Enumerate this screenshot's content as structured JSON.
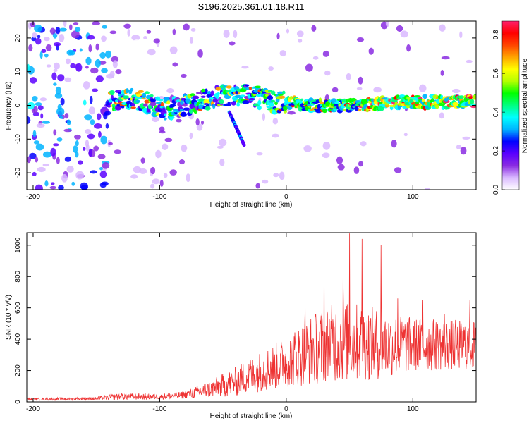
{
  "title": "S196.2025.361.01.18.R11",
  "chart_data": [
    {
      "type": "heatmap",
      "name": "spectrogram",
      "xlabel": "Height of straight line (km)",
      "ylabel": "Frequency (Hz)",
      "xlim": [
        -205,
        150
      ],
      "ylim": [
        -25,
        25
      ],
      "xticks": [
        -200,
        -100,
        0,
        100
      ],
      "yticks": [
        -20,
        -10,
        0,
        10,
        20
      ],
      "colorbar": {
        "label": "Normalized spectral amplitude",
        "range": [
          0,
          0.87
        ],
        "ticks": [
          0.0,
          0.2,
          0.4,
          0.6,
          0.8
        ],
        "colors": [
          "#ffffff",
          "#d9b8ff",
          "#8a2be2",
          "#5a00ff",
          "#0000ff",
          "#00b4ff",
          "#00ffff",
          "#00ff80",
          "#00ff00",
          "#b4ff00",
          "#ffff00",
          "#ffa500",
          "#ff4500",
          "#ff0000",
          "#ff1f6b"
        ]
      },
      "signal_ridge": [
        {
          "x": -140,
          "f": 1
        },
        {
          "x": -130,
          "f": 2
        },
        {
          "x": -120,
          "f": 2
        },
        {
          "x": -110,
          "f": 1
        },
        {
          "x": -100,
          "f": -1
        },
        {
          "x": -90,
          "f": -1
        },
        {
          "x": -80,
          "f": 0
        },
        {
          "x": -70,
          "f": 1
        },
        {
          "x": -60,
          "f": 2
        },
        {
          "x": -50,
          "f": 3
        },
        {
          "x": -40,
          "f": 3
        },
        {
          "x": -30,
          "f": 4
        },
        {
          "x": -20,
          "f": 2
        },
        {
          "x": -10,
          "f": 1
        },
        {
          "x": 0,
          "f": 1
        },
        {
          "x": 20,
          "f": 0
        },
        {
          "x": 40,
          "f": 0
        },
        {
          "x": 60,
          "f": 0
        },
        {
          "x": 80,
          "f": 1
        },
        {
          "x": 100,
          "f": 1
        },
        {
          "x": 120,
          "f": 1
        },
        {
          "x": 150,
          "f": 1
        }
      ]
    },
    {
      "type": "line",
      "name": "snr",
      "xlabel": "Height of straight line (km)",
      "ylabel": "SNR (10 * v/v)",
      "xlim": [
        -205,
        150
      ],
      "ylim": [
        0,
        1080
      ],
      "xticks": [
        -200,
        -100,
        0,
        100
      ],
      "yticks": [
        0,
        200,
        400,
        600,
        800,
        1000
      ],
      "color": "#ee3333",
      "envelope": [
        {
          "x": -205,
          "base": 15,
          "amp": 15
        },
        {
          "x": -150,
          "base": 20,
          "amp": 20
        },
        {
          "x": -130,
          "base": 30,
          "amp": 45
        },
        {
          "x": -100,
          "base": 30,
          "amp": 35
        },
        {
          "x": -80,
          "base": 40,
          "amp": 50
        },
        {
          "x": -60,
          "base": 70,
          "amp": 110
        },
        {
          "x": -40,
          "base": 110,
          "amp": 190
        },
        {
          "x": -20,
          "base": 170,
          "amp": 260
        },
        {
          "x": 0,
          "base": 220,
          "amp": 330
        },
        {
          "x": 20,
          "base": 290,
          "amp": 450
        },
        {
          "x": 40,
          "base": 330,
          "amp": 520
        },
        {
          "x": 60,
          "base": 330,
          "amp": 500
        },
        {
          "x": 80,
          "base": 320,
          "amp": 420
        },
        {
          "x": 100,
          "base": 330,
          "amp": 350
        },
        {
          "x": 120,
          "base": 330,
          "amp": 330
        },
        {
          "x": 150,
          "base": 330,
          "amp": 320
        }
      ],
      "peaks": [
        {
          "x": 15,
          "y": 600
        },
        {
          "x": 30,
          "y": 880
        },
        {
          "x": 45,
          "y": 790
        },
        {
          "x": 50,
          "y": 1075
        },
        {
          "x": 60,
          "y": 1040
        },
        {
          "x": 75,
          "y": 1000
        },
        {
          "x": 88,
          "y": 660
        },
        {
          "x": 108,
          "y": 650
        },
        {
          "x": 125,
          "y": 560
        },
        {
          "x": 145,
          "y": 650
        }
      ]
    }
  ]
}
